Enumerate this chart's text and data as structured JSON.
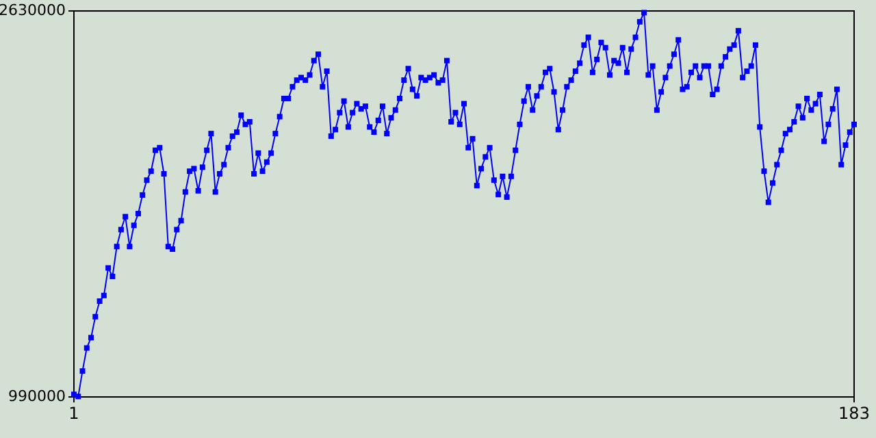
{
  "chart_data": {
    "type": "line",
    "marker": "square",
    "xlim": [
      1,
      183
    ],
    "xticks": [
      1,
      183
    ],
    "ylim": [
      990000,
      2630000
    ],
    "yticks": [
      990000,
      2630000
    ],
    "grid": false,
    "x": [
      1,
      2,
      3,
      4,
      5,
      6,
      7,
      8,
      9,
      10,
      11,
      12,
      13,
      14,
      15,
      16,
      17,
      18,
      19,
      20,
      21,
      22,
      23,
      24,
      25,
      26,
      27,
      28,
      29,
      30,
      31,
      32,
      33,
      34,
      35,
      36,
      37,
      38,
      39,
      40,
      41,
      42,
      43,
      44,
      45,
      46,
      47,
      48,
      49,
      50,
      51,
      52,
      53,
      54,
      55,
      56,
      57,
      58,
      59,
      60,
      61,
      62,
      63,
      64,
      65,
      66,
      67,
      68,
      69,
      70,
      71,
      72,
      73,
      74,
      75,
      76,
      77,
      78,
      79,
      80,
      81,
      82,
      83,
      84,
      85,
      86,
      87,
      88,
      89,
      90,
      91,
      92,
      93,
      94,
      95,
      96,
      97,
      98,
      99,
      100,
      101,
      102,
      103,
      104,
      105,
      106,
      107,
      108,
      109,
      110,
      111,
      112,
      113,
      114,
      115,
      116,
      117,
      118,
      119,
      120,
      121,
      122,
      123,
      124,
      125,
      126,
      127,
      128,
      129,
      130,
      131,
      132,
      133,
      134,
      135,
      136,
      137,
      138,
      139,
      140,
      141,
      142,
      143,
      144,
      145,
      146,
      147,
      148,
      149,
      150,
      151,
      152,
      153,
      154,
      155,
      156,
      157,
      158,
      159,
      160,
      161,
      162,
      163,
      164,
      165,
      166,
      167,
      168,
      169,
      170,
      171,
      172,
      173,
      174,
      175,
      176,
      177,
      178,
      179,
      180,
      181,
      182,
      183
    ],
    "series": [
      {
        "color": "#0000ff",
        "values": [
          1001000,
          992000,
          1100000,
          1198000,
          1242000,
          1331000,
          1397000,
          1421000,
          1538000,
          1502000,
          1629000,
          1701000,
          1756000,
          1629000,
          1719000,
          1769000,
          1848000,
          1911000,
          1949000,
          2038000,
          2049000,
          1938000,
          1629000,
          1618000,
          1701000,
          1739000,
          1861000,
          1949000,
          1960000,
          1866000,
          1966000,
          2038000,
          2109000,
          1861000,
          1938000,
          1977000,
          2049000,
          2098000,
          2115000,
          2187000,
          2148000,
          2159000,
          1938000,
          2026000,
          1949000,
          1988000,
          2026000,
          2109000,
          2181000,
          2258000,
          2258000,
          2308000,
          2336000,
          2347000,
          2336000,
          2358000,
          2419000,
          2446000,
          2308000,
          2374000,
          2098000,
          2126000,
          2198000,
          2247000,
          2137000,
          2198000,
          2236000,
          2214000,
          2225000,
          2137000,
          2115000,
          2165000,
          2225000,
          2109000,
          2176000,
          2209000,
          2258000,
          2336000,
          2385000,
          2297000,
          2269000,
          2347000,
          2336000,
          2347000,
          2358000,
          2325000,
          2336000,
          2419000,
          2159000,
          2198000,
          2148000,
          2236000,
          2049000,
          2087000,
          1888000,
          1960000,
          2010000,
          2049000,
          1911000,
          1850000,
          1927000,
          1839000,
          1927000,
          2038000,
          2148000,
          2247000,
          2308000,
          2209000,
          2269000,
          2308000,
          2369000,
          2385000,
          2286000,
          2126000,
          2209000,
          2308000,
          2336000,
          2374000,
          2408000,
          2485000,
          2518000,
          2369000,
          2424000,
          2496000,
          2474000,
          2358000,
          2419000,
          2408000,
          2474000,
          2369000,
          2468000,
          2518000,
          2584000,
          2623000,
          2358000,
          2396000,
          2209000,
          2286000,
          2347000,
          2396000,
          2446000,
          2507000,
          2297000,
          2308000,
          2369000,
          2396000,
          2347000,
          2396000,
          2396000,
          2275000,
          2297000,
          2396000,
          2435000,
          2468000,
          2485000,
          2546000,
          2347000,
          2374000,
          2396000,
          2485000,
          2137000,
          1949000,
          1817000,
          1899000,
          1977000,
          2038000,
          2109000,
          2126000,
          2159000,
          2225000,
          2176000,
          2258000,
          2209000,
          2236000,
          2275000,
          2076000,
          2148000,
          2214000,
          2297000,
          1977000,
          2060000,
          2115000,
          2148000
        ]
      }
    ]
  }
}
